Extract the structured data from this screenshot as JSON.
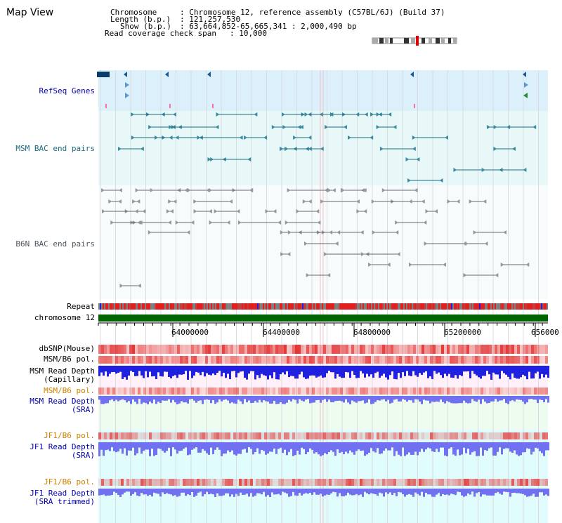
{
  "app": {
    "title": "Map View"
  },
  "info": {
    "chromosome_label": "Chromosome",
    "chromosome_value": ": Chromosome 12, reference assembly (C57BL/6J) (Build 37)",
    "length_label": "Length (b.p.)",
    "length_value": ": 121,257,530",
    "show_label": "Show (b.p.)",
    "show_value": ": 63,664,852-65,665,341 : 2,000,490 bp",
    "coverage_label": "Read coverage check span",
    "coverage_value": ": 10,000"
  },
  "tracks": {
    "refseq": "RefSeq Genes",
    "msm_bac": "MSM BAC end pairs",
    "b6n_bac": "B6N BAC end pairs",
    "repeat": "Repeat",
    "chromosome": "chromosome 12",
    "dbsnp": "dbSNP(Mouse)",
    "msm_b6_pol": "MSM/B6 pol.",
    "msm_depth_cap_1": "MSM Read Depth",
    "msm_depth_cap_2": "(Capillary)",
    "msm_b6_pol_2": "MSM/B6 pol.",
    "msm_depth_sra_1": "MSM Read Depth",
    "msm_depth_sra_2": "(SRA)",
    "jf1_b6_pol": "JF1/B6 pol.",
    "jf1_depth_sra_1": "JF1 Read Depth",
    "jf1_depth_sra_2": "(SRA)",
    "jf1_b6_pol_2": "JF1/B6 pol.",
    "jf1_depth_trim_1": "JF1 Read Depth",
    "jf1_depth_trim_2": "(SRA trimmed)"
  },
  "axis": {
    "ticks": [
      "64000000",
      "64400000",
      "64800000",
      "65200000",
      "656000"
    ]
  },
  "colors": {
    "refseq_bg": "#dcf0fb",
    "msm_bac_bg": "#e8f8f8",
    "b6n_bac_bg": "#f8fbfb",
    "chromosome_bar": "#006400",
    "read_depth_blue": "#2020e0",
    "read_depth_light": "#7070f0",
    "polymorphism_red": "#e02020"
  }
}
